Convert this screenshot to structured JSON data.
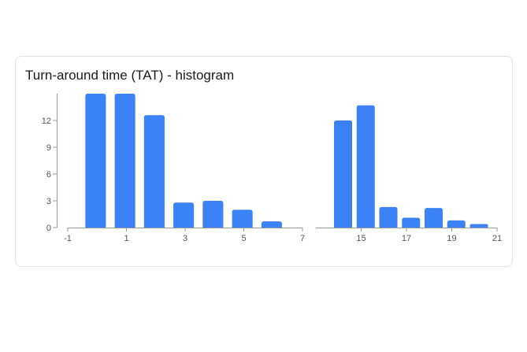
{
  "card": {
    "title": "Turn-around time (TAT) - histogram"
  },
  "colors": {
    "bar": "#3b82f6",
    "axis": "#999999",
    "tick_text": "#555555"
  },
  "chart_data": [
    {
      "type": "bar",
      "title": "",
      "xlabel": "",
      "ylabel": "",
      "xlim": [
        -1,
        7
      ],
      "ylim": [
        0,
        15
      ],
      "y_clipped": true,
      "xticks": [
        -1,
        1,
        3,
        5,
        7
      ],
      "yticks": [
        0,
        3,
        6,
        9,
        12
      ],
      "grid": false,
      "bins": [
        {
          "x0": -0.4,
          "x1": 0.3,
          "count": 15
        },
        {
          "x0": 0.6,
          "x1": 1.3,
          "count": 15
        },
        {
          "x0": 1.6,
          "x1": 2.3,
          "count": 12.6
        },
        {
          "x0": 2.6,
          "x1": 3.3,
          "count": 2.8
        },
        {
          "x0": 3.6,
          "x1": 4.3,
          "count": 3
        },
        {
          "x0": 4.6,
          "x1": 5.3,
          "count": 2
        },
        {
          "x0": 5.6,
          "x1": 6.3,
          "count": 0.7
        }
      ]
    },
    {
      "type": "bar",
      "title": "",
      "xlabel": "",
      "ylabel": "",
      "xlim": [
        13,
        21
      ],
      "ylim": [
        0,
        15
      ],
      "xticks": [
        15,
        17,
        19,
        21
      ],
      "grid": false,
      "bins": [
        {
          "x0": 13.8,
          "x1": 14.6,
          "count": 12
        },
        {
          "x0": 14.8,
          "x1": 15.6,
          "count": 13.7
        },
        {
          "x0": 15.8,
          "x1": 16.6,
          "count": 2.3
        },
        {
          "x0": 16.8,
          "x1": 17.6,
          "count": 1.1
        },
        {
          "x0": 17.8,
          "x1": 18.6,
          "count": 2.2
        },
        {
          "x0": 18.8,
          "x1": 19.6,
          "count": 0.8
        },
        {
          "x0": 19.8,
          "x1": 20.6,
          "count": 0.4
        }
      ]
    }
  ]
}
